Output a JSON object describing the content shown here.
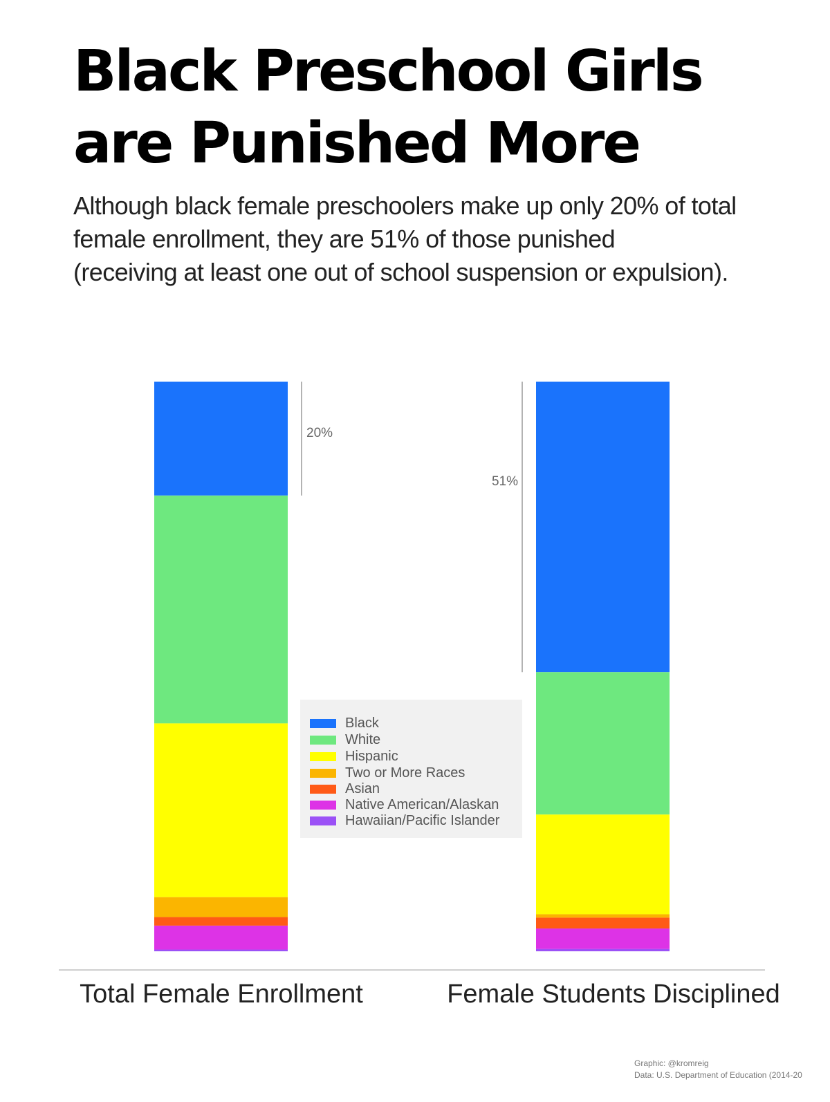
{
  "title_lines": [
    "Black Preschool Girls",
    "are Punished More"
  ],
  "subtitle_lines": [
    "Although black female preschoolers make up only 20% of total",
    "female enrollment, they are 51% of those punished",
    "(receiving at least one out of school suspension or expulsion)."
  ],
  "chart_data": {
    "type": "bar",
    "stacked": true,
    "normalized_percent": true,
    "categories": [
      "Total Female Enrollment",
      "Female Students Disciplined"
    ],
    "series": [
      {
        "name": "Black",
        "color": "#1a73fc",
        "values": [
          20,
          51
        ]
      },
      {
        "name": "White",
        "color": "#6ee87f",
        "values": [
          40,
          25
        ]
      },
      {
        "name": "Hispanic",
        "color": "#ffff00",
        "values": [
          30.5,
          17.5
        ]
      },
      {
        "name": "Two or More Races",
        "color": "#fbb500",
        "values": [
          3.5,
          0.6
        ]
      },
      {
        "name": "Asian",
        "color": "#ff5a16",
        "values": [
          1.5,
          1.9
        ]
      },
      {
        "name": "Native American/Alaskan",
        "color": "#dd33e6",
        "values": [
          4.2,
          3.6
        ]
      },
      {
        "name": "Hawaiian/Pacific Islander",
        "color": "#9b51f6",
        "values": [
          0.3,
          0.4
        ]
      }
    ],
    "annotations": [
      {
        "category": "Total Female Enrollment",
        "label": "20%",
        "side": "right"
      },
      {
        "category": "Female Students Disciplined",
        "label": "51%",
        "side": "left"
      }
    ],
    "legend_position": "center",
    "grid": false,
    "ylim": [
      0,
      100
    ]
  },
  "credit_lines": [
    "Graphic: @kromreig",
    "Data: U.S. Department of Education (2014-20"
  ]
}
